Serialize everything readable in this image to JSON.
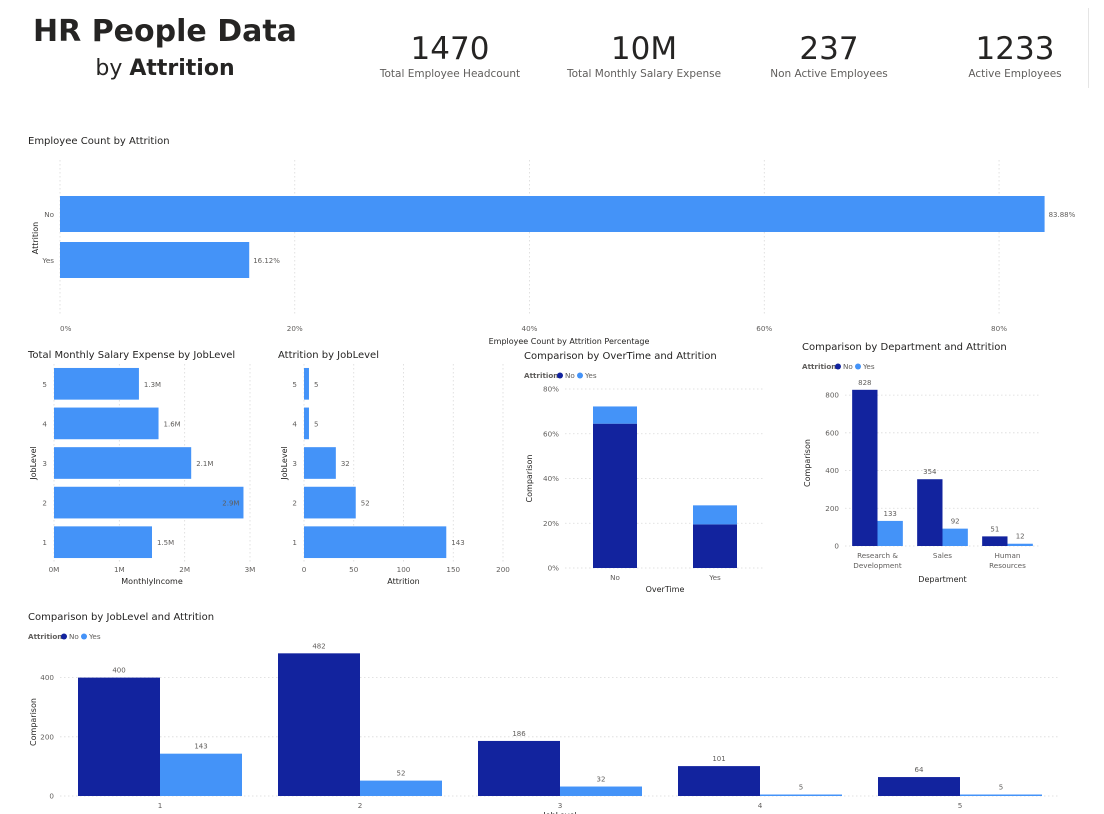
{
  "header": {
    "title": "HR People Data",
    "subtitle_prefix": "by",
    "subtitle_bold": "Attrition"
  },
  "kpis": [
    {
      "value": "1470",
      "label": "Total Employee Headcount"
    },
    {
      "value": "10M",
      "label": "Total Monthly Salary Expense"
    },
    {
      "value": "237",
      "label": "Non Active Employees"
    },
    {
      "value": "1233",
      "label": "Active Employees"
    }
  ],
  "colors": {
    "no": "#12239e",
    "yes": "#4493f8",
    "bar": "#4493f8"
  },
  "chart_data": [
    {
      "id": "attrition_pct",
      "type": "bar",
      "orientation": "horizontal",
      "title": "Employee Count by Attrition",
      "categories": [
        "No",
        "Yes"
      ],
      "values": [
        83.88,
        16.12
      ],
      "data_labels": [
        "83.88%",
        "16.12%"
      ],
      "xlabel": "Employee Count by Attrition Percentage",
      "ylabel": "Attrition",
      "xlim": [
        0,
        84
      ],
      "xticks": [
        "0%",
        "20%",
        "40%",
        "60%",
        "80%"
      ],
      "xtick_values": [
        0,
        20,
        40,
        60,
        80
      ],
      "grid": true
    },
    {
      "id": "salary_joblevel",
      "type": "bar",
      "orientation": "horizontal",
      "title": "Total Monthly Salary Expense by JobLevel",
      "categories": [
        "5",
        "4",
        "3",
        "2",
        "1"
      ],
      "values": [
        1.3,
        1.6,
        2.1,
        2.9,
        1.5
      ],
      "data_labels": [
        "1.3M",
        "1.6M",
        "2.1M",
        "2.9M",
        "1.5M"
      ],
      "xlabel": "MonthlyIncome",
      "ylabel": "JobLevel",
      "xlim": [
        0,
        3
      ],
      "xticks": [
        "0M",
        "1M",
        "2M",
        "3M"
      ],
      "xtick_values": [
        0,
        1,
        2,
        3
      ],
      "grid": true
    },
    {
      "id": "attrition_joblevel",
      "type": "bar",
      "orientation": "horizontal",
      "title": "Attrition by JobLevel",
      "categories": [
        "5",
        "4",
        "3",
        "2",
        "1"
      ],
      "values": [
        5,
        5,
        32,
        52,
        143
      ],
      "data_labels": [
        "5",
        "5",
        "32",
        "52",
        "143"
      ],
      "xlabel": "Attrition",
      "ylabel": "JobLevel",
      "xlim": [
        0,
        200
      ],
      "xticks": [
        "0",
        "50",
        "100",
        "150",
        "200"
      ],
      "xtick_values": [
        0,
        50,
        100,
        150,
        200
      ],
      "grid": true
    },
    {
      "id": "overtime",
      "type": "bar",
      "stacked": true,
      "title": "Comparison by OverTime and Attrition",
      "legend_title": "Attrition",
      "categories": [
        "No",
        "Yes"
      ],
      "series": [
        {
          "name": "No",
          "values": [
            64.5,
            19.5
          ]
        },
        {
          "name": "Yes",
          "values": [
            7.7,
            8.5
          ]
        }
      ],
      "xlabel": "OverTime",
      "ylabel": "Comparison",
      "ylim": [
        0,
        80
      ],
      "yticks": [
        "0%",
        "20%",
        "40%",
        "60%",
        "80%"
      ],
      "ytick_values": [
        0,
        20,
        40,
        60,
        80
      ],
      "grid": true
    },
    {
      "id": "department",
      "type": "bar",
      "title": "Comparison by Department and Attrition",
      "legend_title": "Attrition",
      "categories": [
        "Research & Development",
        "Sales",
        "Human Resources"
      ],
      "category_lines": [
        [
          "Research &",
          "Development"
        ],
        [
          "Sales"
        ],
        [
          "Human",
          "Resources"
        ]
      ],
      "series": [
        {
          "name": "No",
          "values": [
            828,
            354,
            51
          ],
          "data_labels": [
            "828",
            "354",
            "51"
          ]
        },
        {
          "name": "Yes",
          "values": [
            133,
            92,
            12
          ],
          "data_labels": [
            "133",
            "92",
            "12"
          ]
        }
      ],
      "xlabel": "Department",
      "ylabel": "Comparison",
      "ylim": [
        0,
        880
      ],
      "yticks": [
        "0",
        "200",
        "400",
        "600",
        "800"
      ],
      "ytick_values": [
        0,
        200,
        400,
        600,
        800
      ],
      "grid": true
    },
    {
      "id": "joblevel_attrition",
      "type": "bar",
      "title": "Comparison by JobLevel and Attrition",
      "legend_title": "Attrition",
      "categories": [
        "1",
        "2",
        "3",
        "4",
        "5"
      ],
      "series": [
        {
          "name": "No",
          "values": [
            400,
            482,
            186,
            101,
            64
          ],
          "data_labels": [
            "400",
            "482",
            "186",
            "101",
            "64"
          ]
        },
        {
          "name": "Yes",
          "values": [
            143,
            52,
            32,
            5,
            5
          ],
          "data_labels": [
            "143",
            "52",
            "32",
            "5",
            "5"
          ]
        }
      ],
      "xlabel": "JobLevel",
      "ylabel": "Comparison",
      "ylim": [
        0,
        500
      ],
      "yticks": [
        "0",
        "200",
        "400"
      ],
      "ytick_values": [
        0,
        200,
        400
      ],
      "grid": true
    }
  ]
}
